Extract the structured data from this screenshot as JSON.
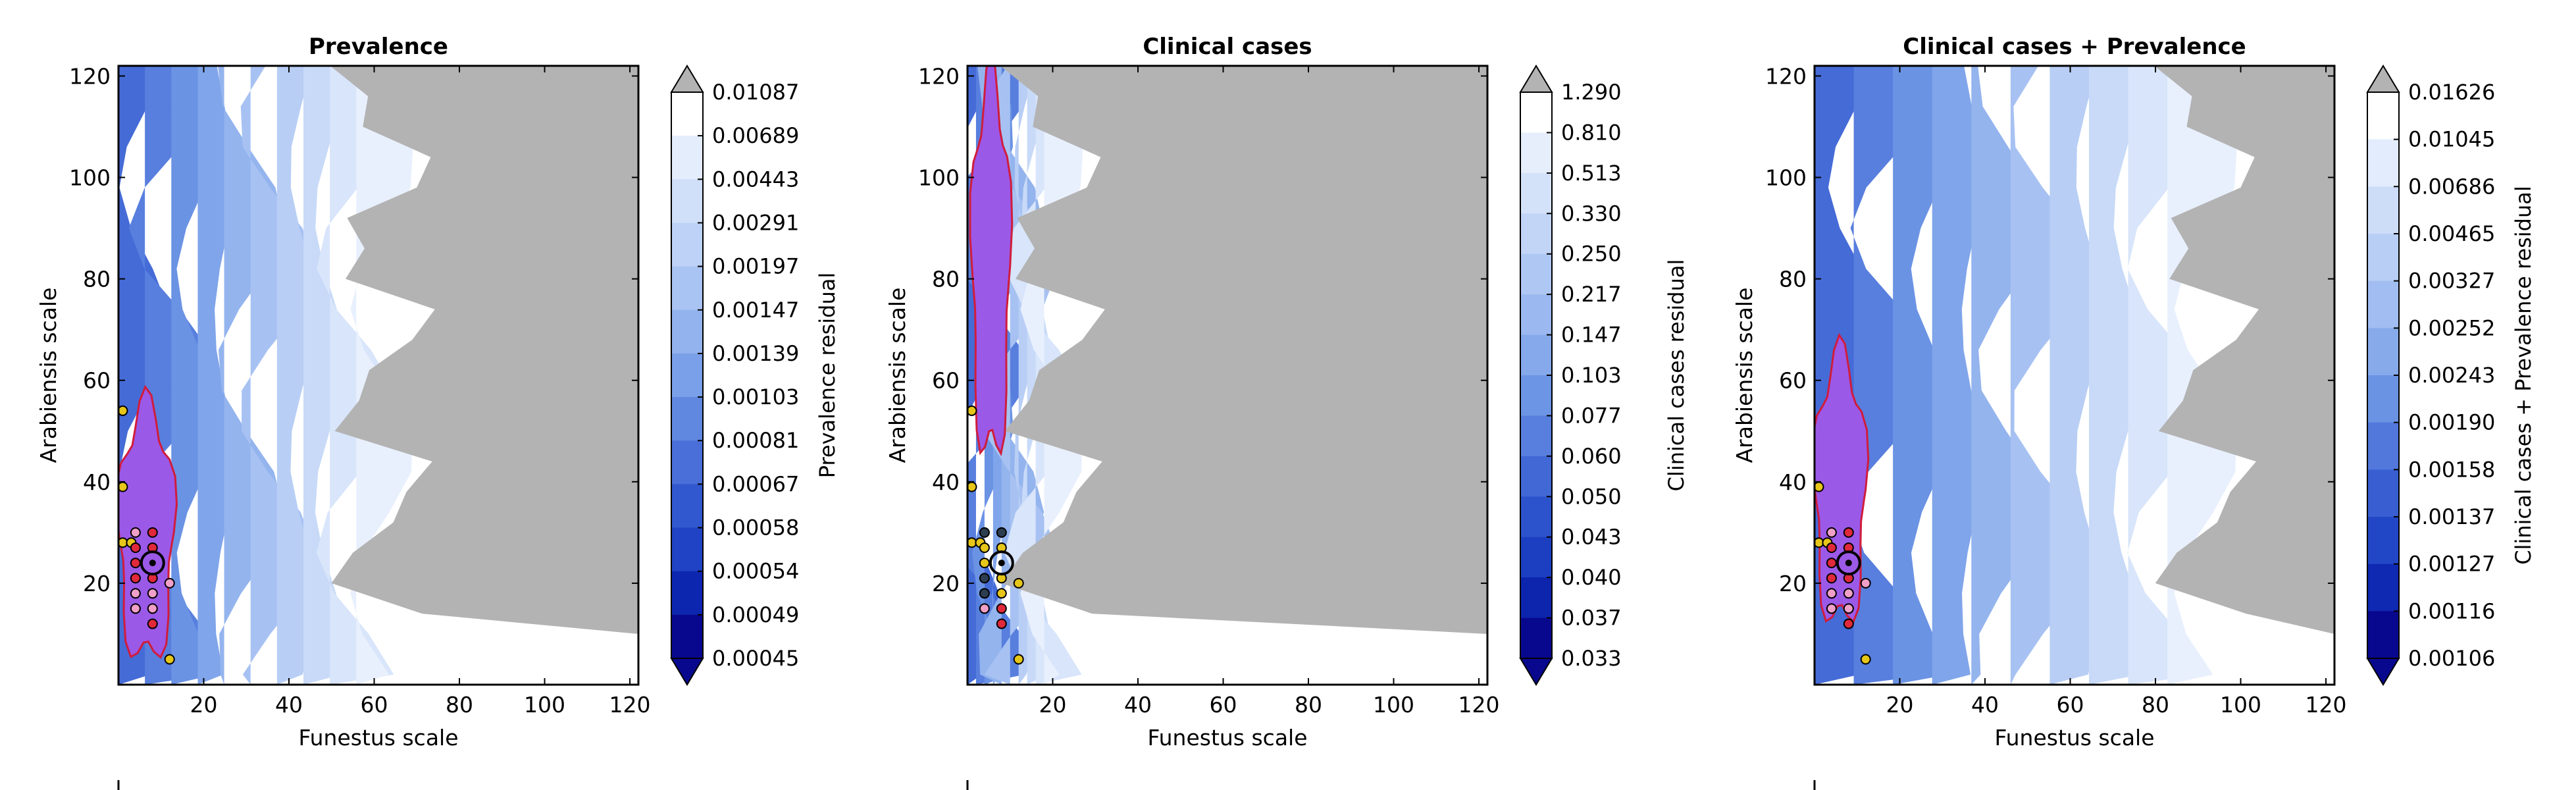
{
  "figure": {
    "x_axis_label": "Funestus scale",
    "y_axis_label": "Arabiensis scale",
    "x_ticks": [
      20,
      40,
      60,
      80,
      100,
      120
    ],
    "y_ticks": [
      20,
      40,
      60,
      80,
      100,
      120
    ]
  },
  "colors": {
    "gray_region": "#b3b3b3",
    "contour_line": "#d01c3c",
    "point_yellow": "#e6c619",
    "point_red": "#e0293a",
    "point_pink": "#f0a0c8",
    "point_dark": "#2c3e50",
    "cmap": [
      "#08088f",
      "#0d26b0",
      "#1f43c4",
      "#3158cf",
      "#4a6fd9",
      "#6088e1",
      "#79a0e8",
      "#92b3ee",
      "#a9c3f2",
      "#bdd2f6",
      "#d1e0f9",
      "#e4edfc",
      "#ffffff"
    ]
  },
  "chart_data": [
    {
      "type": "contour",
      "title": "Prevalence",
      "xlabel": "Funestus scale",
      "ylabel": "Arabiensis scale",
      "xlim": [
        0,
        122
      ],
      "ylim": [
        0,
        122
      ],
      "colorbar_label": "Prevalence residual",
      "colorbar_levels": [
        "0.01087",
        "0.00689",
        "0.00443",
        "0.00291",
        "0.00197",
        "0.00147",
        "0.00139",
        "0.00103",
        "0.00081",
        "0.00067",
        "0.00058",
        "0.00054",
        "0.00049",
        "0.00045"
      ],
      "low_region": {
        "x": [
          0,
          13
        ],
        "y": [
          5,
          55
        ]
      },
      "high_region_start_x": 62,
      "best_fit": {
        "x": 8,
        "y": 24
      },
      "points": [
        {
          "x": 1,
          "y": 28,
          "c": "yellow"
        },
        {
          "x": 1,
          "y": 39,
          "c": "yellow"
        },
        {
          "x": 1,
          "y": 54,
          "c": "yellow"
        },
        {
          "x": 3,
          "y": 28,
          "c": "yellow"
        },
        {
          "x": 4,
          "y": 30,
          "c": "pink"
        },
        {
          "x": 4,
          "y": 27,
          "c": "red"
        },
        {
          "x": 4,
          "y": 24,
          "c": "red"
        },
        {
          "x": 4,
          "y": 21,
          "c": "red"
        },
        {
          "x": 4,
          "y": 18,
          "c": "pink"
        },
        {
          "x": 4,
          "y": 15,
          "c": "pink"
        },
        {
          "x": 8,
          "y": 30,
          "c": "red"
        },
        {
          "x": 8,
          "y": 27,
          "c": "red"
        },
        {
          "x": 8,
          "y": 21,
          "c": "red"
        },
        {
          "x": 8,
          "y": 18,
          "c": "pink"
        },
        {
          "x": 8,
          "y": 15,
          "c": "pink"
        },
        {
          "x": 8,
          "y": 12,
          "c": "red"
        },
        {
          "x": 12,
          "y": 20,
          "c": "pink"
        },
        {
          "x": 12,
          "y": 5,
          "c": "yellow"
        }
      ]
    },
    {
      "type": "contour",
      "title": "Clinical cases",
      "xlabel": "Funestus scale",
      "ylabel": "Arabiensis scale",
      "xlim": [
        0,
        122
      ],
      "ylim": [
        0,
        122
      ],
      "colorbar_label": "Clinical cases residual",
      "colorbar_levels": [
        "1.290",
        "0.810",
        "0.513",
        "0.330",
        "0.250",
        "0.217",
        "0.147",
        "0.103",
        "0.077",
        "0.060",
        "0.050",
        "0.043",
        "0.040",
        "0.037",
        "0.033"
      ],
      "low_region": {
        "x": [
          1,
          10
        ],
        "y": [
          45,
          120
        ]
      },
      "high_region_start_x": 20,
      "best_fit": {
        "x": 8,
        "y": 24
      },
      "points": [
        {
          "x": 1,
          "y": 28,
          "c": "yellow"
        },
        {
          "x": 1,
          "y": 39,
          "c": "yellow"
        },
        {
          "x": 1,
          "y": 54,
          "c": "yellow"
        },
        {
          "x": 3,
          "y": 28,
          "c": "yellow"
        },
        {
          "x": 4,
          "y": 30,
          "c": "dark"
        },
        {
          "x": 4,
          "y": 27,
          "c": "yellow"
        },
        {
          "x": 4,
          "y": 24,
          "c": "yellow"
        },
        {
          "x": 4,
          "y": 21,
          "c": "dark"
        },
        {
          "x": 4,
          "y": 18,
          "c": "dark"
        },
        {
          "x": 4,
          "y": 15,
          "c": "pink"
        },
        {
          "x": 8,
          "y": 30,
          "c": "dark"
        },
        {
          "x": 8,
          "y": 27,
          "c": "yellow"
        },
        {
          "x": 8,
          "y": 21,
          "c": "yellow"
        },
        {
          "x": 8,
          "y": 18,
          "c": "yellow"
        },
        {
          "x": 8,
          "y": 15,
          "c": "red"
        },
        {
          "x": 8,
          "y": 12,
          "c": "red"
        },
        {
          "x": 12,
          "y": 20,
          "c": "yellow"
        },
        {
          "x": 12,
          "y": 5,
          "c": "yellow"
        }
      ]
    },
    {
      "type": "contour",
      "title": "Clinical cases + Prevalence",
      "xlabel": "Funestus scale",
      "ylabel": "Arabiensis scale",
      "xlim": [
        0,
        122
      ],
      "ylim": [
        0,
        122
      ],
      "colorbar_label": "Clinical cases + Prevalence residual",
      "colorbar_levels": [
        "0.01626",
        "0.01045",
        "0.00686",
        "0.00465",
        "0.00327",
        "0.00252",
        "0.00243",
        "0.00190",
        "0.00158",
        "0.00137",
        "0.00127",
        "0.00116",
        "0.00106"
      ],
      "low_region": {
        "x": [
          0,
          12
        ],
        "y": [
          12,
          65
        ]
      },
      "high_region_start_x": 92,
      "best_fit": {
        "x": 8,
        "y": 24
      },
      "points": [
        {
          "x": 1,
          "y": 28,
          "c": "yellow"
        },
        {
          "x": 1,
          "y": 39,
          "c": "yellow"
        },
        {
          "x": 3,
          "y": 28,
          "c": "yellow"
        },
        {
          "x": 4,
          "y": 30,
          "c": "pink"
        },
        {
          "x": 4,
          "y": 27,
          "c": "red"
        },
        {
          "x": 4,
          "y": 24,
          "c": "red"
        },
        {
          "x": 4,
          "y": 21,
          "c": "red"
        },
        {
          "x": 4,
          "y": 18,
          "c": "pink"
        },
        {
          "x": 4,
          "y": 15,
          "c": "pink"
        },
        {
          "x": 8,
          "y": 30,
          "c": "red"
        },
        {
          "x": 8,
          "y": 27,
          "c": "red"
        },
        {
          "x": 8,
          "y": 21,
          "c": "red"
        },
        {
          "x": 8,
          "y": 18,
          "c": "pink"
        },
        {
          "x": 8,
          "y": 15,
          "c": "pink"
        },
        {
          "x": 8,
          "y": 12,
          "c": "red"
        },
        {
          "x": 12,
          "y": 20,
          "c": "pink"
        },
        {
          "x": 12,
          "y": 5,
          "c": "yellow"
        }
      ]
    }
  ]
}
